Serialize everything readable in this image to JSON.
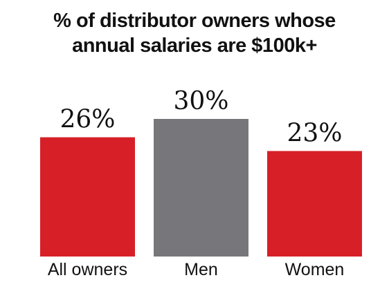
{
  "chart_data": {
    "type": "bar",
    "title_lines": [
      "% of distributor owners whose",
      "annual salaries are $100k+"
    ],
    "categories": [
      "All owners",
      "Men",
      "Women"
    ],
    "values": [
      26,
      30,
      23
    ],
    "value_labels": [
      "26%",
      "30%",
      "23%"
    ],
    "colors": [
      "#d71f27",
      "#77777b",
      "#d71f27"
    ],
    "unit": "%",
    "ylim": [
      0,
      30
    ],
    "grid": false,
    "legend": "none"
  }
}
